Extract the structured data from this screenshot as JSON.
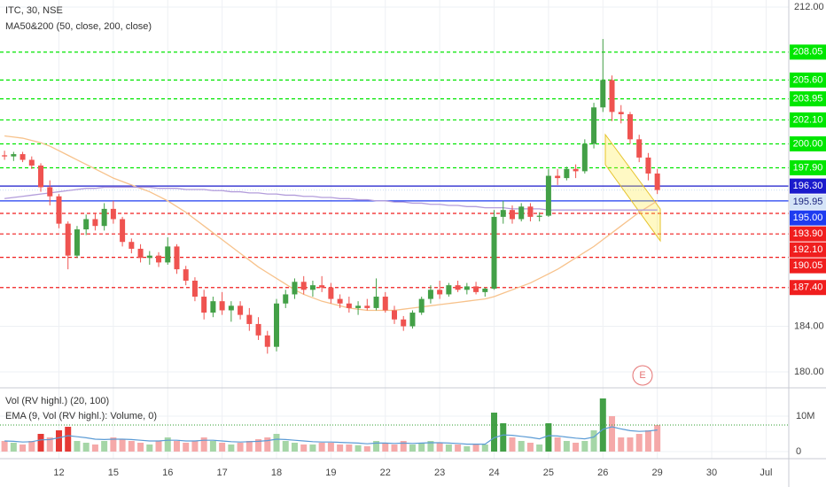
{
  "chart_data": [
    {
      "type": "candlestick",
      "title": "ITC, 30, NSE",
      "subtitle": "MA50&200 (50, close, 200, close)",
      "event_label": "E",
      "up_color": "#43a047",
      "down_color": "#ef5350",
      "grid": true,
      "ylim": [
        178.68,
        212.62
      ],
      "yticks": [
        {
          "value": 180,
          "label": "180.00"
        },
        {
          "value": 184,
          "label": "184.00"
        },
        {
          "value": 212,
          "label": "212.00"
        }
      ],
      "categories": [
        null,
        null,
        null,
        null,
        null,
        null,
        "12",
        null,
        null,
        null,
        null,
        null,
        "15",
        null,
        null,
        null,
        null,
        null,
        "16",
        null,
        null,
        null,
        null,
        null,
        "17",
        null,
        null,
        null,
        null,
        null,
        "18",
        null,
        null,
        null,
        null,
        null,
        "19",
        null,
        null,
        null,
        null,
        null,
        "22",
        null,
        null,
        null,
        null,
        null,
        "23",
        null,
        null,
        null,
        null,
        null,
        "24",
        null,
        null,
        null,
        null,
        null,
        "25",
        null,
        null,
        null,
        null,
        null,
        "26",
        null,
        null,
        null,
        null,
        null,
        "29",
        null,
        null,
        null,
        null,
        null,
        "30",
        null,
        null,
        null,
        null,
        null,
        "Jul",
        null,
        null
      ],
      "open": [
        199.0,
        198.9,
        199.1,
        198.6,
        198.1,
        196.2,
        195.4,
        193.0,
        190.2,
        192.5,
        193.4,
        192.8,
        194.3,
        193.4,
        191.4,
        190.8,
        190.0,
        190.2,
        189.6,
        191.0,
        189.0,
        188.0,
        186.6,
        185.2,
        186.2,
        185.4,
        185.8,
        185.0,
        184.2,
        183.2,
        182.2,
        186.0,
        186.8,
        187.9,
        187.2,
        187.6,
        187.4,
        186.4,
        186.0,
        185.6,
        185.8,
        185.6,
        186.6,
        185.4,
        184.6,
        184.0,
        185.2,
        186.4,
        187.2,
        186.8,
        187.6,
        187.2,
        187.5,
        187.0,
        187.3,
        193.6,
        194.2,
        193.4,
        194.5,
        193.6,
        193.7,
        197.2,
        197.0,
        197.8,
        197.6,
        200.0,
        203.2,
        205.6,
        202.8,
        202.6,
        200.4,
        198.8,
        197.4,
        null,
        null,
        null,
        null,
        null,
        null,
        null,
        null,
        null,
        null,
        null,
        null,
        null,
        null
      ],
      "high": [
        199.4,
        199.3,
        199.3,
        198.9,
        198.3,
        196.8,
        195.6,
        193.2,
        192.8,
        193.8,
        193.9,
        194.8,
        195.0,
        193.6,
        191.7,
        191.2,
        190.6,
        190.5,
        191.8,
        191.2,
        189.3,
        188.3,
        187.2,
        186.6,
        187.0,
        186.2,
        186.2,
        185.6,
        184.8,
        183.6,
        186.4,
        187.2,
        188.2,
        188.4,
        188.0,
        188.4,
        187.8,
        186.8,
        186.6,
        186.2,
        186.4,
        188.2,
        187.0,
        185.8,
        184.9,
        185.4,
        186.6,
        187.6,
        188.0,
        187.8,
        188.0,
        187.8,
        187.9,
        187.4,
        194.2,
        195.0,
        194.6,
        194.8,
        194.8,
        194.0,
        197.8,
        197.8,
        198.0,
        198.2,
        200.4,
        203.6,
        209.2,
        206.0,
        203.4,
        202.8,
        200.8,
        199.2,
        197.8,
        null,
        null,
        null,
        null,
        null,
        null,
        null,
        null,
        null,
        null,
        null,
        null,
        null,
        null
      ],
      "low": [
        198.6,
        198.5,
        198.4,
        197.8,
        195.8,
        194.6,
        192.6,
        189.0,
        190.0,
        192.0,
        192.4,
        192.4,
        193.0,
        191.0,
        190.4,
        189.6,
        189.4,
        189.2,
        189.4,
        188.6,
        187.6,
        186.2,
        184.6,
        184.8,
        185.0,
        184.4,
        184.6,
        183.6,
        182.8,
        181.6,
        181.8,
        185.6,
        186.4,
        186.8,
        186.6,
        187.0,
        186.0,
        185.6,
        185.2,
        185.0,
        185.4,
        185.4,
        185.2,
        184.2,
        183.6,
        183.8,
        185.0,
        186.0,
        186.4,
        186.6,
        187.0,
        186.8,
        186.8,
        186.6,
        187.2,
        193.0,
        193.0,
        193.2,
        193.2,
        193.2,
        193.6,
        196.4,
        196.8,
        197.0,
        197.4,
        199.6,
        202.8,
        202.0,
        201.8,
        200.0,
        198.4,
        196.8,
        195.6,
        null,
        null,
        null,
        null,
        null,
        null,
        null,
        null,
        null,
        null,
        null,
        null,
        null,
        null
      ],
      "close": [
        198.9,
        199.1,
        198.6,
        198.1,
        196.2,
        195.4,
        193.0,
        190.2,
        192.5,
        193.4,
        192.8,
        194.3,
        193.4,
        191.4,
        190.8,
        190.0,
        190.2,
        189.6,
        191.0,
        189.0,
        188.0,
        186.6,
        185.2,
        186.2,
        185.4,
        185.8,
        185.0,
        184.2,
        183.2,
        182.2,
        186.0,
        186.8,
        187.9,
        187.2,
        187.6,
        187.4,
        186.4,
        186.0,
        185.6,
        185.8,
        185.6,
        186.6,
        185.4,
        184.6,
        184.0,
        185.2,
        186.4,
        187.2,
        186.8,
        187.6,
        187.2,
        187.5,
        187.0,
        187.3,
        193.6,
        194.2,
        193.4,
        194.5,
        193.6,
        193.7,
        197.2,
        197.0,
        197.8,
        197.6,
        200.0,
        203.2,
        205.6,
        202.8,
        202.6,
        200.4,
        198.8,
        197.4,
        195.95,
        null,
        null,
        null,
        null,
        null,
        null,
        null,
        null,
        null,
        null,
        null,
        null,
        null,
        null
      ],
      "lines": [
        {
          "color": "#f7c28b",
          "values": [
            200.7,
            200.6,
            200.5,
            200.3,
            200.1,
            199.8,
            199.4,
            199.0,
            198.6,
            198.2,
            197.8,
            197.4,
            197.0,
            196.7,
            196.4,
            196.1,
            195.8,
            195.4,
            195.0,
            194.5,
            194.0,
            193.4,
            192.8,
            192.2,
            191.6,
            191.0,
            190.4,
            189.8,
            189.2,
            188.7,
            188.2,
            187.7,
            187.2,
            186.8,
            186.5,
            186.2,
            186.0,
            185.8,
            185.6,
            185.5,
            185.4,
            185.4,
            185.4,
            185.4,
            185.5,
            185.6,
            185.7,
            185.8,
            185.9,
            186.0,
            186.1,
            186.2,
            186.3,
            186.4,
            186.6,
            186.9,
            187.2,
            187.5,
            187.8,
            188.2,
            188.6,
            189.0,
            189.5,
            190.0,
            190.5,
            191.0,
            191.6,
            192.2,
            192.8,
            193.4,
            194.0,
            194.5,
            195.0,
            null,
            null,
            null,
            null,
            null,
            null,
            null,
            null,
            null,
            null,
            null,
            null,
            null,
            null
          ]
        },
        {
          "color": "#b39ddb",
          "values": [
            195.2,
            195.3,
            195.4,
            195.5,
            195.6,
            195.7,
            195.8,
            195.9,
            196.0,
            196.1,
            196.1,
            196.2,
            196.2,
            196.2,
            196.2,
            196.2,
            196.2,
            196.1,
            196.1,
            196.1,
            196.0,
            196.0,
            196.0,
            195.9,
            195.9,
            195.8,
            195.8,
            195.7,
            195.7,
            195.6,
            195.6,
            195.5,
            195.5,
            195.4,
            195.4,
            195.3,
            195.3,
            195.2,
            195.2,
            195.1,
            195.1,
            195.0,
            195.0,
            194.9,
            194.9,
            194.8,
            194.8,
            194.7,
            194.7,
            194.6,
            194.6,
            194.5,
            194.5,
            194.4,
            194.4,
            194.4,
            194.3,
            194.3,
            194.3,
            194.3,
            194.2,
            194.2,
            194.2,
            194.2,
            194.2,
            194.2,
            194.2,
            194.2,
            194.2,
            194.2,
            194.2,
            194.2,
            194.2,
            null,
            null,
            null,
            null,
            null,
            null,
            null,
            null,
            null,
            null,
            null,
            null,
            null,
            null
          ]
        }
      ],
      "levels": [
        {
          "value": 208.05,
          "label": "208.05",
          "color": "#00e600",
          "style": "dashed"
        },
        {
          "value": 205.6,
          "label": "205.60",
          "color": "#00e600",
          "style": "dashed"
        },
        {
          "value": 203.95,
          "label": "203.95",
          "color": "#00e600",
          "style": "dashed"
        },
        {
          "value": 202.1,
          "label": "202.10",
          "color": "#00e600",
          "style": "dashed"
        },
        {
          "value": 200.0,
          "label": "200.00",
          "color": "#00e600",
          "style": "dashed"
        },
        {
          "value": 197.9,
          "label": "197.90",
          "color": "#00e600",
          "style": "dashed"
        },
        {
          "value": 196.3,
          "label": "196.30",
          "color": "#1a1acc",
          "style": "solid"
        },
        {
          "value": 195.95,
          "label": "195.95",
          "color": "#d4e3f7",
          "style": "dotted"
        },
        {
          "value": 195.0,
          "label": "195.00",
          "color": "#1e3cf0",
          "style": "solid"
        },
        {
          "value": 193.9,
          "label": "193.90",
          "color": "#f01e1e",
          "style": "dashed"
        },
        {
          "value": 192.1,
          "label": "192.10",
          "color": "#f01e1e",
          "style": "dashed"
        },
        {
          "value": 190.05,
          "label": "190.05",
          "color": "#f01e1e",
          "style": "dashed"
        },
        {
          "value": 187.4,
          "label": "187.40",
          "color": "#f01e1e",
          "style": "dashed"
        }
      ]
    },
    {
      "type": "bar",
      "title": "Vol (RV highl.) (20, 100)",
      "subtitle": "EMA (9, Vol (RV highl.): Volume, 0)",
      "ylim": [
        -2,
        17.5
      ],
      "yticks": [
        0,
        {
          "value": 10,
          "label": "10M"
        }
      ],
      "colors": {
        "up": "#a5d6a7",
        "down": "#f5a9a9",
        "up_high": "#43a047",
        "down_high": "#e53935"
      },
      "threshold": 7.5,
      "threshold_color": "#2e9e2e",
      "ema_color": "#5b9bd5",
      "values": [
        3,
        2.5,
        2,
        3,
        5,
        4,
        6,
        7,
        3,
        2.5,
        2,
        3,
        4,
        3.5,
        3,
        2.5,
        2,
        3,
        4,
        3,
        2.5,
        3,
        4,
        3,
        2.5,
        2,
        2.5,
        3,
        3.5,
        4,
        5,
        3,
        2.5,
        2,
        2,
        2.5,
        2.5,
        2,
        2,
        1.8,
        1.5,
        3,
        2.5,
        2,
        3,
        2,
        2.5,
        3,
        2.5,
        2,
        2,
        1.5,
        2,
        2,
        11,
        8,
        4,
        3,
        2.5,
        2,
        8,
        4,
        3,
        2.5,
        3,
        6,
        15,
        10,
        4,
        4,
        5,
        6,
        7.5,
        null,
        null,
        null,
        null,
        null,
        null,
        null,
        null,
        null,
        null,
        null,
        null,
        null,
        null
      ],
      "ema": [
        3,
        2.9,
        2.7,
        2.8,
        3.3,
        3.4,
        3.9,
        4.5,
        4.2,
        3.9,
        3.5,
        3.4,
        3.5,
        3.5,
        3.4,
        3.2,
        3.0,
        3.0,
        3.2,
        3.2,
        3.0,
        3.0,
        3.2,
        3.2,
        3.0,
        2.8,
        2.7,
        2.8,
        2.9,
        3.1,
        3.5,
        3.4,
        3.2,
        3.0,
        2.8,
        2.7,
        2.7,
        2.6,
        2.5,
        2.4,
        2.2,
        2.4,
        2.4,
        2.3,
        2.4,
        2.3,
        2.4,
        2.5,
        2.5,
        2.4,
        2.3,
        2.1,
        2.1,
        2.1,
        3.9,
        4.7,
        4.6,
        4.3,
        4.0,
        3.6,
        4.5,
        4.4,
        4.1,
        3.8,
        3.6,
        4.1,
        6.3,
        7.0,
        6.4,
        5.9,
        5.7,
        5.8,
        6.1,
        null,
        null,
        null,
        null,
        null,
        null,
        null,
        null,
        null,
        null,
        null,
        null,
        null,
        null
      ]
    }
  ]
}
